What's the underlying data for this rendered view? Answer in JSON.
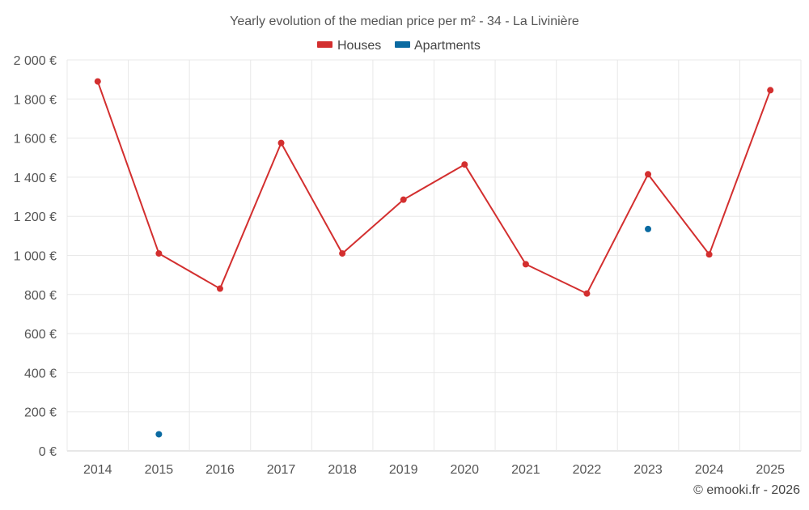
{
  "chart_data": {
    "type": "line",
    "title": "Yearly evolution of the median price per m² - 34 - La Livinière",
    "categories": [
      "2014",
      "2015",
      "2016",
      "2017",
      "2018",
      "2019",
      "2020",
      "2021",
      "2022",
      "2023",
      "2024",
      "2025"
    ],
    "y_tick_labels": [
      "0 €",
      "200 €",
      "400 €",
      "600 €",
      "800 €",
      "1 000 €",
      "1 200 €",
      "1 400 €",
      "1 600 €",
      "1 800 €",
      "2 000 €"
    ],
    "ylim": [
      0,
      2000
    ],
    "y_tick_step": 200,
    "grid": true,
    "legend_position": "top-center",
    "series": [
      {
        "name": "Houses",
        "color": "#d32f2f",
        "values": [
          1890,
          1010,
          830,
          1575,
          1010,
          1285,
          1465,
          955,
          805,
          1415,
          1005,
          1845
        ]
      },
      {
        "name": "Apartments",
        "color": "#0a6aa1",
        "values": [
          null,
          85,
          null,
          null,
          null,
          null,
          null,
          null,
          null,
          1135,
          null,
          null
        ]
      }
    ]
  },
  "credit": "© emooki.fr - 2026"
}
